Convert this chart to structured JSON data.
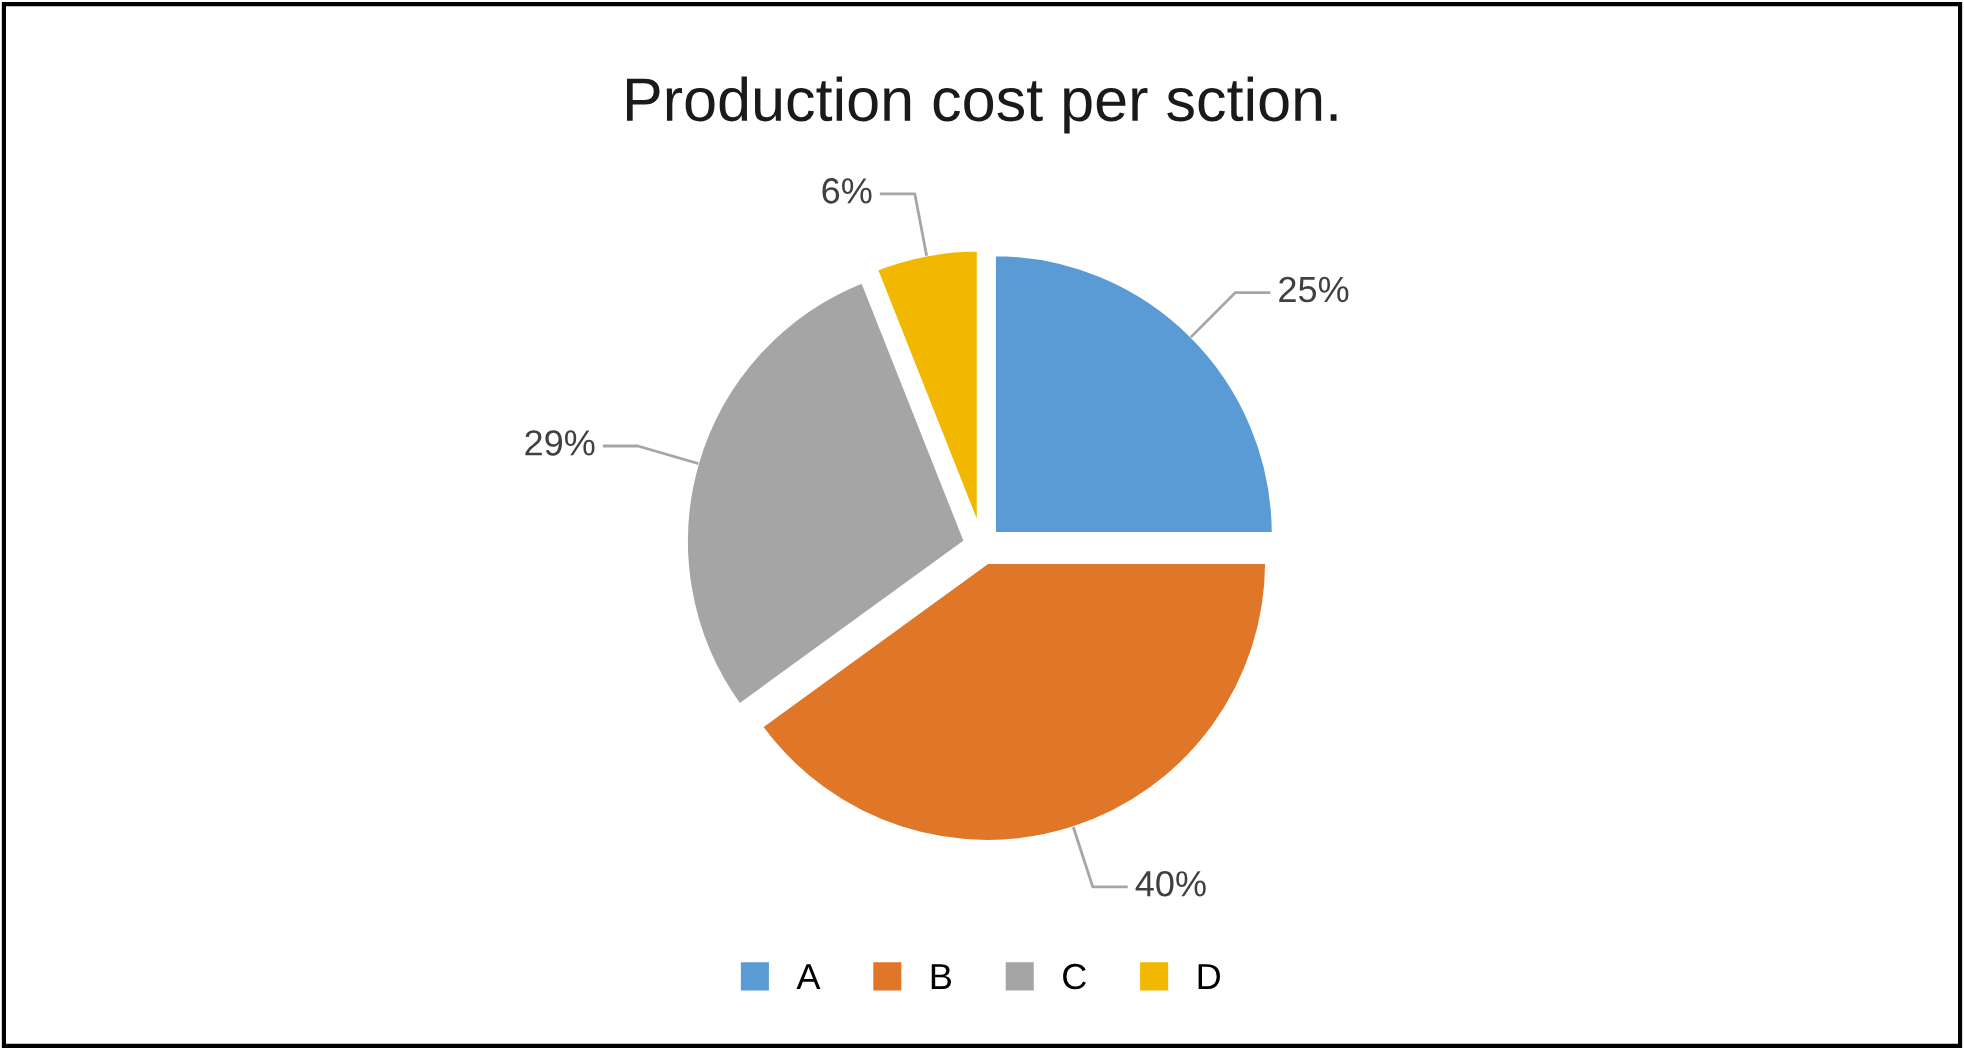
{
  "chart_data": {
    "type": "pie",
    "title": "Production cost per sction.",
    "categories": [
      "A",
      "B",
      "C",
      "D"
    ],
    "values": [
      25,
      40,
      29,
      6
    ],
    "value_labels": [
      "25%",
      "40%",
      "29%",
      "6%"
    ],
    "colors": [
      "#5b9bd5",
      "#e07628",
      "#a5a5a5",
      "#f2b800"
    ],
    "legend": "bottom"
  }
}
